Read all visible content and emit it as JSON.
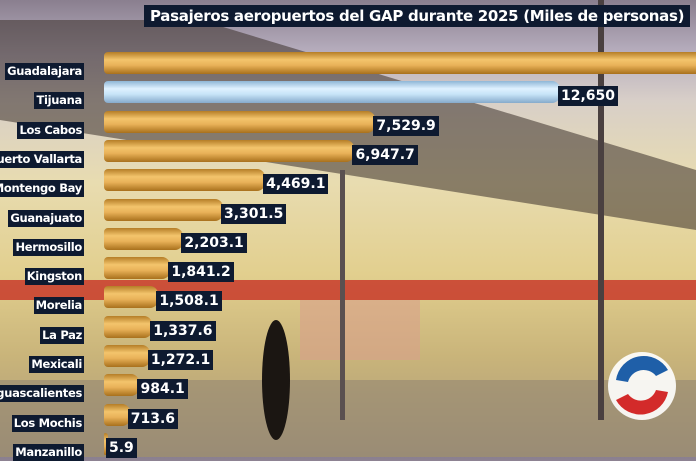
{
  "chart_data": {
    "type": "bar",
    "orientation": "horizontal",
    "title": "Pasajeros aeropuertos del GAP durante 2025 (Miles de personas)",
    "categories": [
      "Guadalajara",
      "Tijuana",
      "Los Cabos",
      "uerto Vallarta",
      "Montengo Bay",
      "Guanajuato",
      "Hermosillo",
      "Kingston",
      "Morelia",
      "La Paz",
      "Mexicali",
      "Aguascalientes",
      "Los Mochis",
      "Manzanillo"
    ],
    "values": [
      null,
      12650,
      7529.9,
      6947.7,
      4469.1,
      3301.5,
      2203.1,
      1841.2,
      1508.1,
      1337.6,
      1272.1,
      984.1,
      713.6,
      5.9
    ],
    "value_labels": [
      "",
      "12,650",
      "7,529.9",
      "6,947.7",
      "4,469.1",
      "3,301.5",
      "2,203.1",
      "1,841.2",
      "1,508.1",
      "1,337.6",
      "1,272.1",
      "984.1",
      "713.6",
      "5.9"
    ],
    "highlight_index": 1,
    "colors": {
      "bar": "#e9b259",
      "highlight": "#c7e4f8",
      "label_bg": "#0e1a30"
    },
    "grid": false,
    "legend": "none"
  }
}
